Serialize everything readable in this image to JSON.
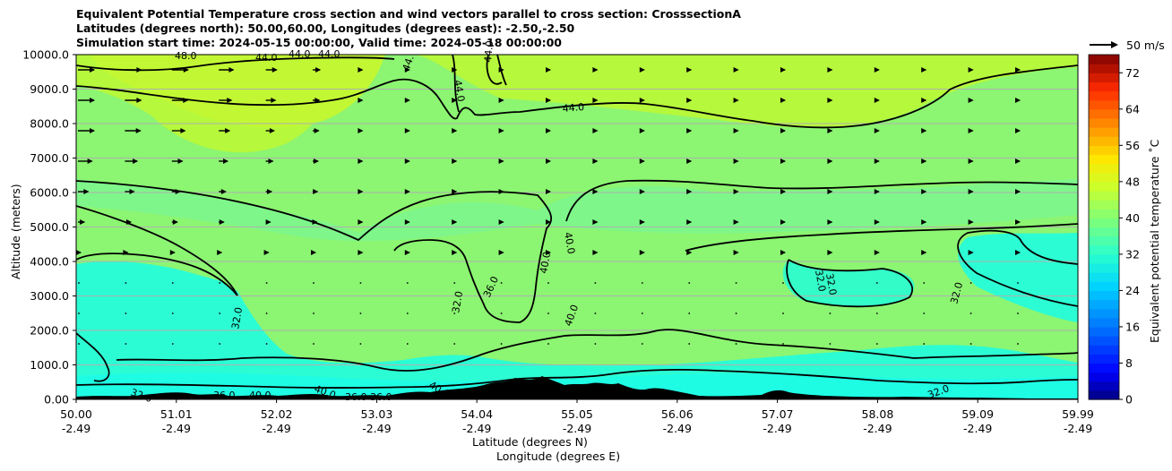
{
  "title_lines": [
    "Equivalent Potential Temperature cross section and wind vectors parallel to cross section: CrosssectionA",
    "Latitudes (degrees north): 50.00,60.00, Longitudes (degrees east): -2.50,-2.50",
    "Simulation start time: 2024-05-15 00:00:00, Valid time: 2024-05-18 00:00:00"
  ],
  "quiver_key": "50 m/s",
  "colorbar_label": "Equivalent potential temperature $^\\circ$C",
  "colorbar_label_display": "Equivalent potential temperature ˚C",
  "chart_data": {
    "type": "heatmap",
    "title": "Equivalent Potential Temperature cross section and wind vectors parallel to cross section: CrosssectionA",
    "ylabel": "Altitude (meters)",
    "xlabel_lines": [
      "Latitude (degrees N)",
      "Longitude (degrees E)"
    ],
    "ylim": [
      0,
      10000
    ],
    "yticks": [
      "0.00",
      "1000.0",
      "2000.0",
      "3000.0",
      "4000.0",
      "5000.0",
      "6000.0",
      "7000.0",
      "8000.0",
      "9000.0",
      "10000.0"
    ],
    "xticks": [
      {
        "lat": "50.00",
        "lon": "-2.49"
      },
      {
        "lat": "51.01",
        "lon": "-2.49"
      },
      {
        "lat": "52.02",
        "lon": "-2.49"
      },
      {
        "lat": "53.03",
        "lon": "-2.49"
      },
      {
        "lat": "54.04",
        "lon": "-2.49"
      },
      {
        "lat": "55.05",
        "lon": "-2.49"
      },
      {
        "lat": "56.06",
        "lon": "-2.49"
      },
      {
        "lat": "57.07",
        "lon": "-2.49"
      },
      {
        "lat": "58.08",
        "lon": "-2.49"
      },
      {
        "lat": "59.09",
        "lon": "-2.49"
      },
      {
        "lat": "59.99",
        "lon": "-2.49"
      }
    ],
    "colorbar_ticks": [
      "0",
      "8",
      "16",
      "24",
      "32",
      "40",
      "48",
      "56",
      "64",
      "72"
    ],
    "colorbar_range": [
      0,
      76
    ],
    "contour_labels": [
      "48.0",
      "44.0",
      "44.0",
      "44.0",
      "44.",
      "44.0",
      "44.0",
      "44.0",
      "40.0",
      "40.0",
      "40.0",
      "36.0",
      "32.0",
      "32.0",
      "32.0",
      "32.0",
      "32.0",
      "36.0",
      "40.0",
      "40.0",
      "36.0",
      "36.0",
      "40.0",
      "32.0",
      "32.0"
    ],
    "grid": "horizontal",
    "vector_rows": 10
  },
  "colors": {
    "background_green": "#8cf572",
    "upper_yellowgreen": "#b6f83c",
    "lower_cyan": "#2cfcd4",
    "terrain": "#000000"
  }
}
